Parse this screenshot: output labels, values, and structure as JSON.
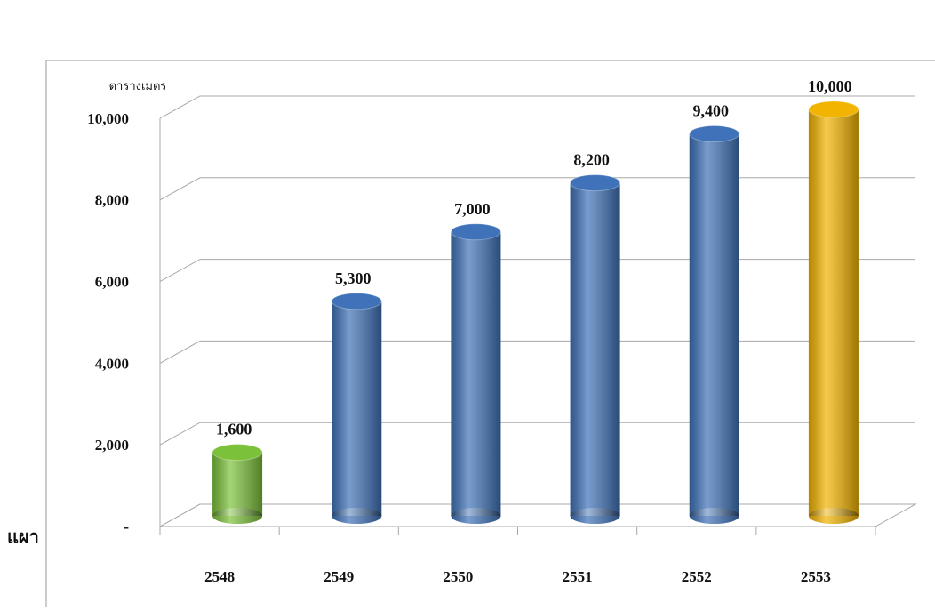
{
  "chart_data": {
    "type": "bar",
    "y_label": "ตารางเมตร",
    "side_label": "แผา",
    "categories": [
      "2548",
      "2549",
      "2550",
      "2551",
      "2552",
      "2553"
    ],
    "values": [
      1600,
      5300,
      7000,
      8200,
      9400,
      10000
    ],
    "value_labels": [
      "1,600",
      "5,300",
      "7,000",
      "8,200",
      "9,400",
      "10,000"
    ],
    "colors": [
      "#7cc13a",
      "#3f72b8",
      "#3f72b8",
      "#3f72b8",
      "#3f72b8",
      "#f2b400"
    ],
    "ylim": [
      0,
      10000
    ],
    "yticks": [
      {
        "value": 0,
        "label": "-"
      },
      {
        "value": 2000,
        "label": "2,000"
      },
      {
        "value": 4000,
        "label": "4,000"
      },
      {
        "value": 6000,
        "label": "6,000"
      },
      {
        "value": 8000,
        "label": "8,000"
      },
      {
        "value": 10000,
        "label": "10,000"
      }
    ],
    "grid": true
  }
}
